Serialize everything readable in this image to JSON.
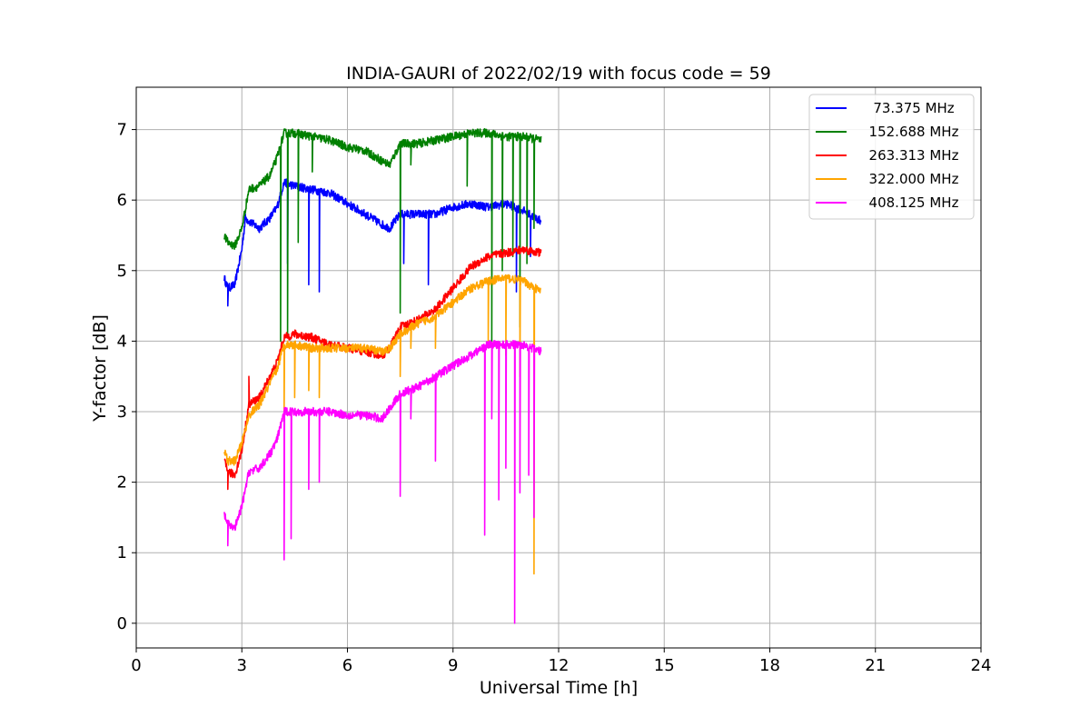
{
  "chart_data": {
    "type": "line",
    "title": "INDIA-GAURI of 2022/02/19 with focus code = 59",
    "xlabel": "Universal Time [h]",
    "ylabel": "Y-factor [dB]",
    "xlim": [
      0,
      24
    ],
    "ylim": [
      -0.35,
      7.6
    ],
    "xticks": [
      "0",
      "3",
      "6",
      "9",
      "12",
      "15",
      "18",
      "21",
      "24"
    ],
    "yticks": [
      "0",
      "1",
      "2",
      "3",
      "4",
      "5",
      "6",
      "7"
    ],
    "grid": true,
    "legend_position": "top-right",
    "series": [
      {
        "name": "  73.375 MHz",
        "color": "#0000ff",
        "x": [
          2.5,
          2.6,
          2.8,
          3.0,
          3.1,
          3.2,
          3.5,
          3.8,
          4.0,
          4.2,
          4.5,
          5.0,
          5.5,
          6.0,
          6.5,
          7.0,
          7.2,
          7.5,
          8.0,
          8.5,
          9.0,
          9.5,
          10.0,
          10.5,
          11.0,
          11.5
        ],
        "y": [
          4.9,
          4.75,
          4.8,
          5.3,
          5.75,
          5.7,
          5.6,
          5.75,
          5.9,
          6.25,
          6.2,
          6.15,
          6.1,
          5.95,
          5.8,
          5.65,
          5.6,
          5.8,
          5.8,
          5.8,
          5.9,
          5.95,
          5.9,
          5.95,
          5.85,
          5.7
        ],
        "dips": [
          [
            2.6,
            4.5
          ],
          [
            4.3,
            5.1
          ],
          [
            4.9,
            4.8
          ],
          [
            5.2,
            4.7
          ],
          [
            7.6,
            5.1
          ],
          [
            8.3,
            4.8
          ],
          [
            10.8,
            4.7
          ],
          [
            11.2,
            5.2
          ]
        ]
      },
      {
        "name": "152.688 MHz",
        "color": "#008000",
        "x": [
          2.5,
          2.6,
          2.8,
          3.0,
          3.2,
          3.5,
          3.8,
          4.0,
          4.2,
          4.5,
          5.0,
          5.5,
          6.0,
          6.5,
          7.0,
          7.2,
          7.5,
          8.0,
          8.5,
          9.0,
          9.5,
          10.0,
          10.5,
          11.0,
          11.5
        ],
        "y": [
          5.5,
          5.4,
          5.35,
          5.6,
          6.15,
          6.2,
          6.35,
          6.6,
          6.95,
          6.95,
          6.9,
          6.85,
          6.75,
          6.7,
          6.55,
          6.5,
          6.8,
          6.8,
          6.85,
          6.9,
          6.95,
          6.95,
          6.9,
          6.9,
          6.85
        ],
        "dips": [
          [
            4.1,
            4.0
          ],
          [
            4.3,
            4.1
          ],
          [
            4.6,
            5.4
          ],
          [
            5.0,
            6.4
          ],
          [
            7.5,
            4.4
          ],
          [
            7.8,
            6.5
          ],
          [
            9.4,
            6.2
          ],
          [
            10.1,
            4.0
          ],
          [
            10.4,
            5.0
          ],
          [
            10.7,
            5.2
          ],
          [
            10.9,
            4.2
          ],
          [
            11.1,
            5.1
          ],
          [
            11.3,
            5.6
          ]
        ]
      },
      {
        "name": "263.313 MHz",
        "color": "#ff0000",
        "x": [
          2.5,
          2.6,
          2.8,
          3.0,
          3.2,
          3.5,
          3.8,
          4.0,
          4.2,
          4.5,
          5.0,
          5.5,
          6.0,
          6.5,
          7.0,
          7.2,
          7.5,
          8.0,
          8.5,
          9.0,
          9.5,
          10.0,
          10.5,
          11.0,
          11.5
        ],
        "y": [
          2.3,
          2.15,
          2.1,
          2.45,
          3.1,
          3.2,
          3.5,
          3.7,
          4.05,
          4.1,
          4.05,
          3.95,
          3.9,
          3.85,
          3.8,
          3.9,
          4.2,
          4.3,
          4.45,
          4.75,
          5.05,
          5.2,
          5.25,
          5.3,
          5.25
        ],
        "dips": [
          [
            2.6,
            1.9
          ],
          [
            3.2,
            3.5
          ]
        ]
      },
      {
        "name": "322.000 MHz",
        "color": "#ffa500",
        "x": [
          2.5,
          2.6,
          2.8,
          3.0,
          3.2,
          3.5,
          3.8,
          4.0,
          4.2,
          4.5,
          5.0,
          5.5,
          6.0,
          6.5,
          7.0,
          7.2,
          7.5,
          8.0,
          8.5,
          9.0,
          9.5,
          10.0,
          10.5,
          11.0,
          11.5
        ],
        "y": [
          2.45,
          2.3,
          2.3,
          2.55,
          2.95,
          3.1,
          3.4,
          3.6,
          3.95,
          3.95,
          3.9,
          3.9,
          3.9,
          3.9,
          3.85,
          3.9,
          4.1,
          4.25,
          4.35,
          4.55,
          4.75,
          4.85,
          4.9,
          4.85,
          4.7
        ],
        "dips": [
          [
            4.2,
            3.0
          ],
          [
            4.5,
            3.2
          ],
          [
            4.9,
            3.3
          ],
          [
            5.2,
            3.2
          ],
          [
            7.5,
            3.5
          ],
          [
            7.8,
            3.9
          ],
          [
            8.5,
            3.9
          ],
          [
            10.0,
            4.0
          ],
          [
            10.5,
            3.8
          ],
          [
            10.9,
            3.5
          ],
          [
            11.3,
            0.7
          ]
        ]
      },
      {
        "name": "408.125 MHz",
        "color": "#ff00ff",
        "x": [
          2.5,
          2.6,
          2.8,
          3.0,
          3.2,
          3.5,
          3.8,
          4.0,
          4.2,
          4.5,
          5.0,
          5.5,
          6.0,
          6.5,
          7.0,
          7.2,
          7.5,
          8.0,
          8.5,
          9.0,
          9.5,
          10.0,
          10.5,
          11.0,
          11.5
        ],
        "y": [
          1.55,
          1.4,
          1.35,
          1.65,
          2.15,
          2.2,
          2.4,
          2.6,
          3.0,
          3.0,
          3.0,
          3.0,
          2.95,
          2.95,
          2.9,
          3.05,
          3.25,
          3.35,
          3.5,
          3.65,
          3.8,
          3.95,
          3.95,
          3.95,
          3.85
        ],
        "dips": [
          [
            2.6,
            1.1
          ],
          [
            4.2,
            0.9
          ],
          [
            4.4,
            1.2
          ],
          [
            4.9,
            1.9
          ],
          [
            5.2,
            2.0
          ],
          [
            7.5,
            1.8
          ],
          [
            7.8,
            2.9
          ],
          [
            8.5,
            2.3
          ],
          [
            9.9,
            1.25
          ],
          [
            10.1,
            2.9
          ],
          [
            10.3,
            1.75
          ],
          [
            10.5,
            2.2
          ],
          [
            10.75,
            0.0
          ],
          [
            10.9,
            1.85
          ],
          [
            11.15,
            2.1
          ],
          [
            11.3,
            1.5
          ]
        ]
      }
    ]
  }
}
